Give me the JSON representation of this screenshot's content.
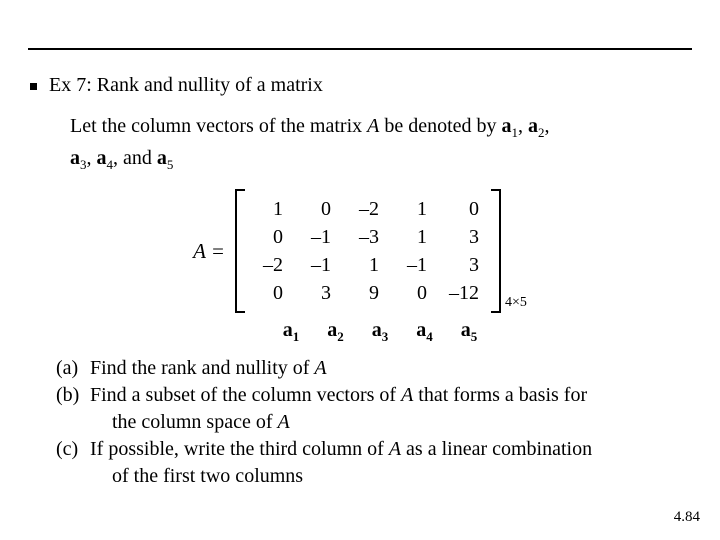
{
  "title": "Ex 7: Rank and nullity of a matrix",
  "intro": {
    "line1_a": "Let the column vectors of the matrix ",
    "line1_A": "A",
    "line1_b": " be denoted by ",
    "v1": "a",
    "s1": "1",
    "v2": "a",
    "s2": "2",
    "line2_a": ", ",
    "v3": "a",
    "s3": "3",
    "v4": "a",
    "s4": "4",
    "line2_and": ", and ",
    "v5": "a",
    "s5": "5"
  },
  "matrix": {
    "lhs": "A =",
    "rows": 4,
    "cols": 5,
    "data": [
      [
        "1",
        "0",
        "–2",
        "1",
        "0"
      ],
      [
        "0",
        "–1",
        "–3",
        "1",
        "3"
      ],
      [
        "–2",
        "–1",
        "1",
        "–1",
        "3"
      ],
      [
        "0",
        "3",
        "9",
        "0",
        "–12"
      ]
    ],
    "dim": "4×5"
  },
  "col_labels": {
    "l1a": "a",
    "l1s": "1",
    "l2a": "a",
    "l2s": "2",
    "l3a": "a",
    "l3s": "3",
    "l4a": "a",
    "l4s": "4",
    "l5a": "a",
    "l5s": "5"
  },
  "tasks": {
    "a_tag": "(a)",
    "a_1": "Find the rank and nullity of ",
    "a_A": "A",
    "b_tag": "(b)",
    "b_1": "Find a subset of the column vectors of ",
    "b_A": "A",
    "b_2": " that forms a basis for",
    "b_3": "the column space of  ",
    "b_A2": "A",
    "c_tag": "(c)",
    "c_1": "If possible, write the third column of ",
    "c_A": "A",
    "c_2": " as a linear combination",
    "c_3": "of the first two columns"
  },
  "pagenum": "4.84",
  "colors": {
    "text": "#000000",
    "bg": "#ffffff"
  }
}
